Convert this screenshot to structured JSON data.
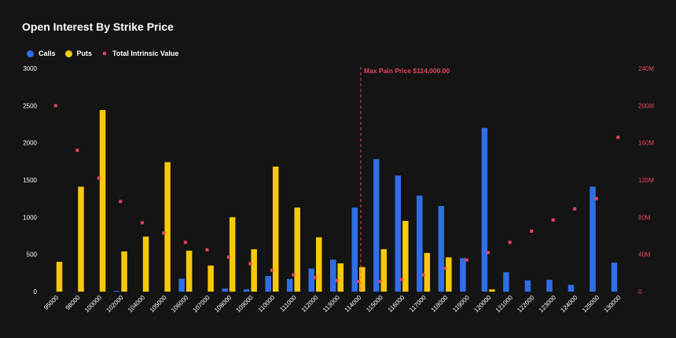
{
  "title": "Open Interest By Strike Price",
  "legend": [
    {
      "label": "Calls",
      "color": "#2f6fe8",
      "shape": "circle"
    },
    {
      "label": "Puts",
      "color": "#f8c90b",
      "shape": "circle"
    },
    {
      "label": "Total Intrinsic Value",
      "color": "#e8445d",
      "shape": "square"
    }
  ],
  "chart_data": {
    "type": "bar",
    "title": "Open Interest By Strike Price",
    "xlabel": "",
    "ylabel": "",
    "y2label": "",
    "ylim": [
      0,
      3000
    ],
    "y2lim": [
      0,
      240
    ],
    "yticks": [
      "0",
      "500",
      "1000",
      "1500",
      "2000",
      "2500",
      "3000"
    ],
    "y2ticks": [
      "0",
      "40M",
      "80M",
      "120M",
      "160M",
      "200M",
      "240M"
    ],
    "categories": [
      "95000",
      "98000",
      "100000",
      "102000",
      "104000",
      "105000",
      "106000",
      "107000",
      "108000",
      "109000",
      "110000",
      "111000",
      "112000",
      "113000",
      "114000",
      "115000",
      "116000",
      "117000",
      "118000",
      "119000",
      "120000",
      "121000",
      "122000",
      "123000",
      "124000",
      "125000",
      "130000"
    ],
    "series": [
      {
        "name": "Calls",
        "type": "bar",
        "axis": "left",
        "color": "#2f6fe8",
        "values": [
          0,
          0,
          0,
          10,
          0,
          0,
          175,
          0,
          40,
          30,
          210,
          170,
          310,
          430,
          1130,
          1780,
          1560,
          1290,
          1150,
          450,
          2200,
          260,
          150,
          160,
          90,
          1410,
          390
        ]
      },
      {
        "name": "Puts",
        "type": "bar",
        "axis": "left",
        "color": "#f8c90b",
        "values": [
          400,
          1410,
          2440,
          540,
          740,
          1740,
          550,
          350,
          1000,
          570,
          1680,
          1130,
          730,
          380,
          330,
          570,
          950,
          520,
          460,
          0,
          30,
          0,
          0,
          0,
          0,
          0,
          0
        ]
      },
      {
        "name": "Total Intrinsic Value",
        "type": "scatter",
        "axis": "right",
        "unit": "M",
        "color": "#e8445d",
        "values": [
          200,
          152,
          122,
          97,
          74,
          63,
          53,
          45,
          37,
          30,
          23,
          18,
          15,
          12,
          11,
          11,
          13,
          18,
          25,
          34,
          42,
          53,
          65,
          77,
          89,
          100,
          166
        ]
      }
    ],
    "annotations": [
      {
        "text": "Max Pain Price $114,000.00",
        "x": "114000"
      }
    ],
    "grid": false,
    "legend_position": "top-left"
  }
}
